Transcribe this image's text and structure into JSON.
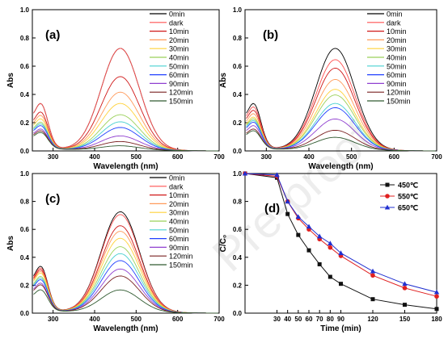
{
  "watermark": "Pre-proof",
  "chart_data": [
    {
      "panel": "(a)",
      "type": "line",
      "xlabel": "Wavelength (nm)",
      "ylabel": "Abs",
      "xlim": [
        250,
        700
      ],
      "ylim": [
        0,
        1.0
      ],
      "xticks": [
        300,
        400,
        500,
        600,
        700
      ],
      "yticks": [
        0.0,
        0.2,
        0.4,
        0.6,
        0.8,
        1.0
      ],
      "legend_position": "top-right",
      "series": [
        {
          "name": "0min",
          "color": "#000000",
          "peak": 0.72,
          "uv": 0.27
        },
        {
          "name": "dark",
          "color": "#ff5050",
          "peak": 0.72,
          "uv": 0.27
        },
        {
          "name": "10min",
          "color": "#d01818",
          "peak": 0.52,
          "uv": 0.22
        },
        {
          "name": "20min",
          "color": "#ff9a5a",
          "peak": 0.41,
          "uv": 0.2
        },
        {
          "name": "30min",
          "color": "#ffd23a",
          "peak": 0.33,
          "uv": 0.18
        },
        {
          "name": "40min",
          "color": "#9ad05a",
          "peak": 0.25,
          "uv": 0.16
        },
        {
          "name": "50min",
          "color": "#48d0d0",
          "peak": 0.2,
          "uv": 0.15
        },
        {
          "name": "60min",
          "color": "#2040ff",
          "peak": 0.16,
          "uv": 0.14
        },
        {
          "name": "90min",
          "color": "#9040d0",
          "peak": 0.1,
          "uv": 0.12
        },
        {
          "name": "120min",
          "color": "#7a2020",
          "peak": 0.06,
          "uv": 0.11
        },
        {
          "name": "150min",
          "color": "#305a30",
          "peak": 0.03,
          "uv": 0.1
        }
      ]
    },
    {
      "panel": "(b)",
      "type": "line",
      "xlabel": "Wavelength (nm)",
      "ylabel": "Abs",
      "xlim": [
        250,
        700
      ],
      "ylim": [
        0,
        1.0
      ],
      "xticks": [
        300,
        400,
        500,
        600,
        700
      ],
      "yticks": [
        0.0,
        0.2,
        0.4,
        0.6,
        0.8,
        1.0
      ],
      "legend_position": "top-right",
      "series": [
        {
          "name": "0min",
          "color": "#000000",
          "peak": 0.72,
          "uv": 0.27
        },
        {
          "name": "dark",
          "color": "#ff5050",
          "peak": 0.64,
          "uv": 0.25
        },
        {
          "name": "10min",
          "color": "#d01818",
          "peak": 0.58,
          "uv": 0.23
        },
        {
          "name": "20min",
          "color": "#ff9a5a",
          "peak": 0.5,
          "uv": 0.21
        },
        {
          "name": "30min",
          "color": "#ffd23a",
          "peak": 0.43,
          "uv": 0.19
        },
        {
          "name": "40min",
          "color": "#9ad05a",
          "peak": 0.39,
          "uv": 0.18
        },
        {
          "name": "50min",
          "color": "#48d0d0",
          "peak": 0.33,
          "uv": 0.17
        },
        {
          "name": "60min",
          "color": "#2040ff",
          "peak": 0.3,
          "uv": 0.16
        },
        {
          "name": "90min",
          "color": "#9040d0",
          "peak": 0.22,
          "uv": 0.14
        },
        {
          "name": "120min",
          "color": "#7a2020",
          "peak": 0.14,
          "uv": 0.12
        },
        {
          "name": "150min",
          "color": "#305a30",
          "peak": 0.09,
          "uv": 0.11
        }
      ]
    },
    {
      "panel": "(c)",
      "type": "line",
      "xlabel": "Wavelength (nm)",
      "ylabel": "Abs",
      "xlim": [
        250,
        700
      ],
      "ylim": [
        0,
        1.0
      ],
      "xticks": [
        300,
        400,
        500,
        600,
        700
      ],
      "yticks": [
        0.0,
        0.2,
        0.4,
        0.6,
        0.8,
        1.0
      ],
      "legend_position": "top-right",
      "series": [
        {
          "name": "0min",
          "color": "#000000",
          "peak": 0.72,
          "uv": 0.27
        },
        {
          "name": "dark",
          "color": "#ff5050",
          "peak": 0.7,
          "uv": 0.26
        },
        {
          "name": "10min",
          "color": "#d01818",
          "peak": 0.62,
          "uv": 0.25
        },
        {
          "name": "20min",
          "color": "#ff9a5a",
          "peak": 0.58,
          "uv": 0.24
        },
        {
          "name": "30min",
          "color": "#ffd23a",
          "peak": 0.53,
          "uv": 0.23
        },
        {
          "name": "40min",
          "color": "#9ad05a",
          "peak": 0.47,
          "uv": 0.21
        },
        {
          "name": "50min",
          "color": "#48d0d0",
          "peak": 0.42,
          "uv": 0.2
        },
        {
          "name": "60min",
          "color": "#2040ff",
          "peak": 0.37,
          "uv": 0.19
        },
        {
          "name": "90min",
          "color": "#9040d0",
          "peak": 0.31,
          "uv": 0.17
        },
        {
          "name": "120min",
          "color": "#7a2020",
          "peak": 0.26,
          "uv": 0.16
        },
        {
          "name": "150min",
          "color": "#305a30",
          "peak": 0.16,
          "uv": 0.13
        }
      ]
    },
    {
      "panel": "(d)",
      "type": "line",
      "xlabel": "Time (min)",
      "ylabel": "C/C₀",
      "xlim": [
        0,
        180
      ],
      "ylim": [
        0,
        1.0
      ],
      "xticks": [
        30,
        40,
        50,
        60,
        70,
        80,
        90,
        120,
        150,
        180
      ],
      "yticks": [
        0.0,
        0.2,
        0.4,
        0.6,
        0.8,
        1.0
      ],
      "legend_position": "top-right",
      "x": [
        0,
        30,
        40,
        50,
        60,
        70,
        80,
        90,
        120,
        150,
        180
      ],
      "series": [
        {
          "name": "450℃",
          "color": "#111111",
          "marker": "square",
          "values": [
            1.0,
            0.97,
            0.71,
            0.56,
            0.45,
            0.35,
            0.26,
            0.21,
            0.1,
            0.06,
            0.03
          ]
        },
        {
          "name": "550℃",
          "color": "#e02020",
          "marker": "circle",
          "values": [
            1.0,
            0.98,
            0.8,
            0.68,
            0.6,
            0.53,
            0.47,
            0.41,
            0.27,
            0.18,
            0.12
          ]
        },
        {
          "name": "650℃",
          "color": "#2030d0",
          "marker": "triangle",
          "values": [
            1.0,
            0.99,
            0.8,
            0.69,
            0.62,
            0.55,
            0.5,
            0.43,
            0.3,
            0.21,
            0.15
          ]
        }
      ]
    }
  ]
}
